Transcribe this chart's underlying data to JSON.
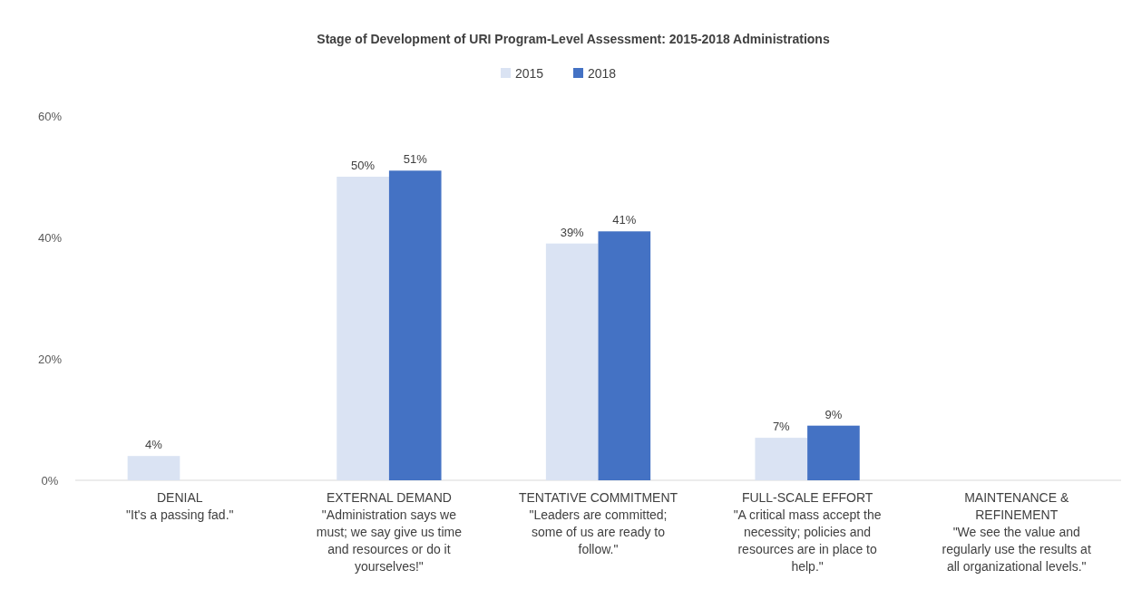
{
  "chart_data": {
    "type": "bar",
    "title": "Stage of Development of URI Program-Level Assessment: 2015-2018 Administrations",
    "categories": [
      "DENIAL\n\"It's a passing fad.\"",
      "EXTERNAL DEMAND\n\"Administration says we\nmust; we say give us time\nand resources or do it\nyourselves!\"",
      "TENTATIVE COMMITMENT\n\"Leaders are committed;\nsome of us are ready to\nfollow.\"",
      "FULL-SCALE EFFORT\n\"A critical mass accept the\nnecessity; policies and\nresources are in place to\nhelp.\"",
      "MAINTENANCE &\nREFINEMENT\n\"We see the value and\nregularly use the results at\nall organizational levels.\""
    ],
    "series": [
      {
        "name": "2015",
        "color": "#dae3f3",
        "values": [
          4,
          50,
          39,
          7,
          null
        ],
        "value_labels": [
          "4%",
          "50%",
          "39%",
          "7%",
          null
        ]
      },
      {
        "name": "2018",
        "color": "#4472c4",
        "values": [
          null,
          51,
          41,
          9,
          null
        ],
        "value_labels": [
          null,
          "51%",
          "41%",
          "9%",
          null
        ]
      }
    ],
    "ylim": [
      0,
      60
    ],
    "yticks": [
      {
        "value": 0,
        "label": "0%"
      },
      {
        "value": 20,
        "label": "20%"
      },
      {
        "value": 40,
        "label": "40%"
      },
      {
        "value": 60,
        "label": "60%"
      }
    ],
    "legend": "top",
    "grid": false
  }
}
